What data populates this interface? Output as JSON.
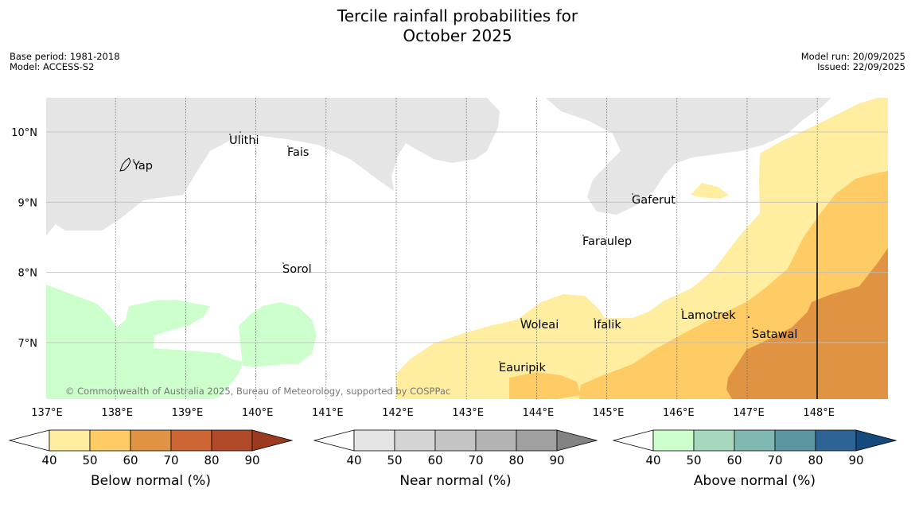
{
  "title": {
    "line1": "Tercile rainfall probabilities for",
    "line2": "October 2025"
  },
  "meta": {
    "base_period": "Base period: 1981-2018",
    "model": "Model: ACCESS-S2",
    "model_run": "Model run: 20/09/2025",
    "issued": "Issued: 22/09/2025"
  },
  "map": {
    "lon_ticks": [
      "137°E",
      "138°E",
      "139°E",
      "140°E",
      "141°E",
      "142°E",
      "143°E",
      "144°E",
      "145°E",
      "146°E",
      "147°E",
      "148°E"
    ],
    "lat_ticks": [
      "10°N",
      "9°N",
      "8°N",
      "7°N"
    ],
    "places": [
      {
        "name": "Yap"
      },
      {
        "name": "Ulithi"
      },
      {
        "name": "Fais"
      },
      {
        "name": "Gaferut"
      },
      {
        "name": "Faraulep"
      },
      {
        "name": "Sorol"
      },
      {
        "name": "Lamotrek"
      },
      {
        "name": "Woleai"
      },
      {
        "name": "Ifalik"
      },
      {
        "name": "Satawal"
      },
      {
        "name": "Eauripik"
      }
    ],
    "copyright": "© Commonwealth of Australia 2025, Bureau of Meteorology, supported by COSPPac"
  },
  "colorbars": [
    {
      "label": "Below normal (%)",
      "ticks": [
        "40",
        "50",
        "60",
        "70",
        "80",
        "90"
      ],
      "colors": [
        "#ffffff",
        "#ffeda0",
        "#fecb64",
        "#e09443",
        "#ce6535",
        "#b04a28",
        "#9c3a20"
      ]
    },
    {
      "label": "Near normal (%)",
      "ticks": [
        "40",
        "50",
        "60",
        "70",
        "80",
        "90"
      ],
      "colors": [
        "#ffffff",
        "#e5e5e5",
        "#d4d4d4",
        "#c4c4c4",
        "#b3b3b3",
        "#a0a0a0",
        "#838383"
      ]
    },
    {
      "label": "Above normal (%)",
      "ticks": [
        "40",
        "50",
        "60",
        "70",
        "80",
        "90"
      ],
      "colors": [
        "#ffffff",
        "#ccffcc",
        "#a6d8bd",
        "#80b8b2",
        "#5c96a0",
        "#2e6396",
        "#16497e"
      ]
    }
  ]
}
